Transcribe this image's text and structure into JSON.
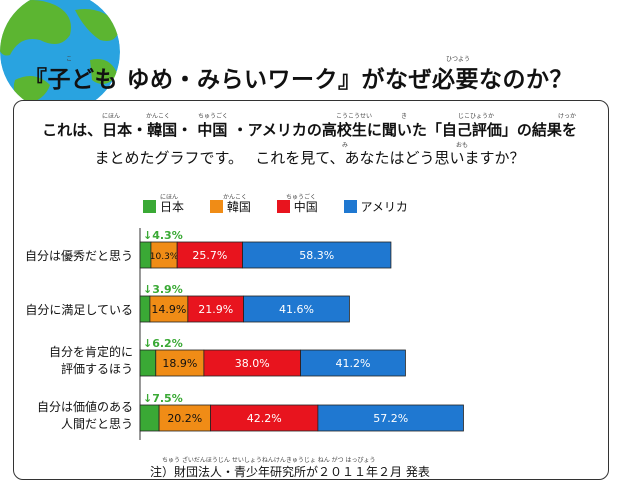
{
  "title": "『子ども ゆめ・みらいワーク』がなぜ必要なのか？",
  "title_ruby": [
    "こ",
    "ひつよう"
  ],
  "intro": {
    "line1": "これは、日本・韓国・ 中国 ・アメリカの高校生に聞いた「自己評価」の結果を",
    "line2": "まとめたグラフです。　 これを見て、あなたはどう思いますか？",
    "ruby": [
      "にほん",
      "かんこく",
      "ちゅうごく",
      "こうこうせい",
      "き",
      "じこひょうか",
      "けっか",
      "み",
      "おも"
    ]
  },
  "legend": [
    {
      "label": "日本",
      "ruby": "にほん",
      "color": "#3aa935"
    },
    {
      "label": "韓国",
      "ruby": "かんこく",
      "color": "#f08c16"
    },
    {
      "label": "中国",
      "ruby": "ちゅうごく",
      "color": "#e8141e"
    },
    {
      "label": "アメリカ",
      "ruby": "",
      "color": "#1f78d1"
    }
  ],
  "chart_data": {
    "type": "bar",
    "stacked": true,
    "orientation": "horizontal",
    "categories": [
      [
        "自分は優秀だと思う"
      ],
      [
        "自分に満足している"
      ],
      [
        "自分を肯定的に",
        "評価するほう"
      ],
      [
        "自分は価値のある",
        "人間だと思う"
      ]
    ],
    "category_ruby": [
      [
        "じぶん ゆうしゅう おも"
      ],
      [
        "じぶん まんぞく"
      ],
      [
        "じぶん こうていてき",
        "ひょうか"
      ],
      [
        "じぶん かち",
        "にんげん おも"
      ]
    ],
    "series": [
      {
        "name": "日本",
        "values": [
          4.3,
          3.9,
          6.2,
          7.5
        ],
        "labels": [
          "↓4.3%",
          "↓3.9%",
          "↓6.2%",
          "↓7.5%"
        ]
      },
      {
        "name": "韓国",
        "values": [
          10.3,
          14.9,
          18.9,
          20.2
        ],
        "labels": [
          "10.3%",
          "14.9%",
          "18.9%",
          "20.2%"
        ]
      },
      {
        "name": "中国",
        "values": [
          25.7,
          21.9,
          38.0,
          42.2
        ],
        "labels": [
          "25.7%",
          "21.9%",
          "38.0%",
          "42.2%"
        ]
      },
      {
        "name": "アメリカ",
        "values": [
          58.3,
          41.6,
          41.2,
          57.2
        ],
        "labels": [
          "58.3%",
          "41.6%",
          "41.2%",
          "57.2%"
        ]
      }
    ],
    "colors": [
      "#3aa935",
      "#f08c16",
      "#e8141e",
      "#1f78d1"
    ],
    "grid": false,
    "legend_position": "top"
  },
  "source": "注）財団法人・青少年研究所が２０１１年２月 発表",
  "source_ruby": "ちゅう ざいだんほうじん せいしょうねんけんきゅうじょ ねん がつ はっぴょう"
}
